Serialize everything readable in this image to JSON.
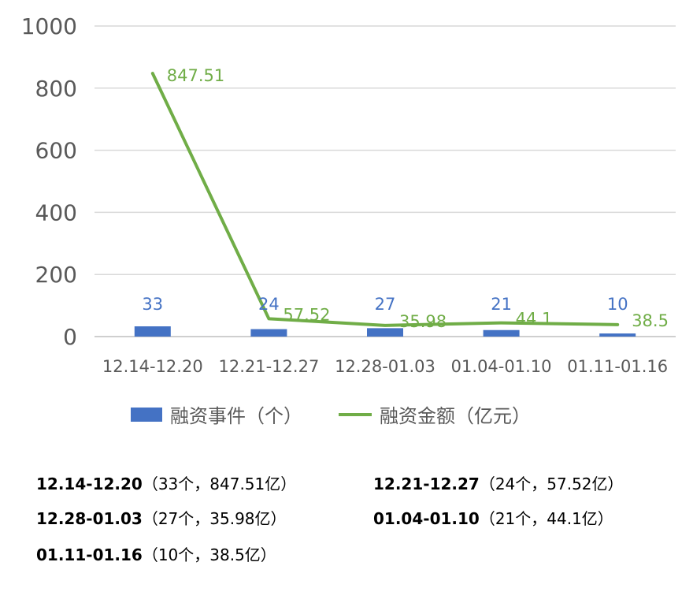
{
  "chart_data": {
    "type": "bar+line",
    "categories": [
      "12.14-12.20",
      "12.21-12.27",
      "12.28-01.03",
      "01.04-01.10",
      "01.11-01.16"
    ],
    "series": [
      {
        "name": "融资事件（个）",
        "type": "bar",
        "color": "#4472c4",
        "values": [
          33,
          24,
          27,
          21,
          10
        ]
      },
      {
        "name": "融资金额（亿元）",
        "type": "line",
        "color": "#70ad47",
        "values": [
          847.51,
          57.52,
          35.98,
          44.1,
          38.5
        ]
      }
    ],
    "yticks": [
      "0",
      "200",
      "400",
      "600",
      "800",
      "1000"
    ],
    "ylim": [
      0,
      1000
    ],
    "grid": true,
    "legend": "bottom"
  },
  "summary": [
    {
      "period": "12.14-12.20",
      "detail": "（33个，847.51亿）"
    },
    {
      "period": "12.21-12.27",
      "detail": "（24个，57.52亿）"
    },
    {
      "period": "12.28-01.03",
      "detail": "（27个，35.98亿）"
    },
    {
      "period": "01.04-01.10",
      "detail": "（21个，44.1亿）"
    },
    {
      "period": "01.11-01.16",
      "detail": "（10个，38.5亿）"
    }
  ]
}
